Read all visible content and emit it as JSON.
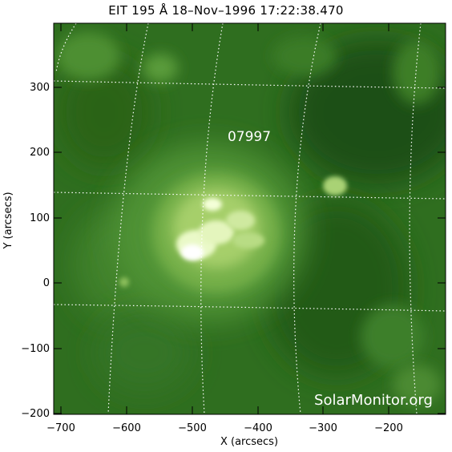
{
  "title": "EIT 195 Å 18–Nov–1996  17:22:38.470",
  "x_axis": {
    "label": "X (arcsecs)",
    "ticks": [
      "−700",
      "−600",
      "−500",
      "−400",
      "−300",
      "−200"
    ],
    "range": [
      -714,
      -117
    ]
  },
  "y_axis": {
    "label": "Y (arcsecs)",
    "ticks": [
      "−200",
      "−100",
      "0",
      "100",
      "200",
      "300"
    ],
    "range": [
      -209,
      395
    ]
  },
  "region_label": "07997",
  "watermark": "SolarMonitor.org",
  "colors": {
    "background_green": "#2f6e1f",
    "bright_core": "#f4ffd8",
    "grid": "#ffffff"
  }
}
